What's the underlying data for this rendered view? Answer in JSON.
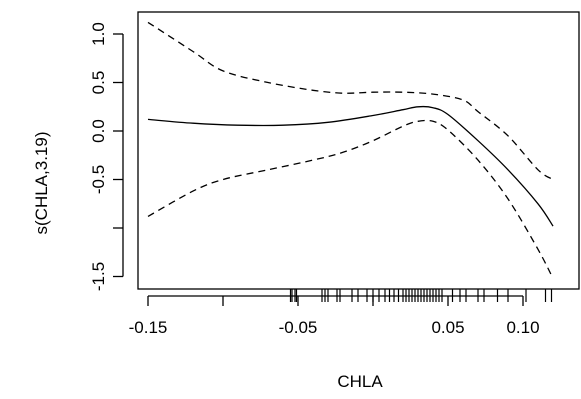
{
  "chart_data": {
    "type": "line",
    "title": "",
    "xlabel": "CHLA",
    "ylabel": "s(CHLA,3.19)",
    "xlim": [
      -0.15,
      0.12
    ],
    "ylim": [
      -1.65,
      1.2
    ],
    "x_ticks": [
      -0.15,
      -0.1,
      -0.05,
      0.0,
      0.05,
      0.1
    ],
    "x_tick_labels": [
      "-0.15",
      "",
      "-0.05",
      "",
      "0.05",
      "0.10"
    ],
    "y_ticks": [
      1.0,
      0.5,
      0.0,
      -0.5,
      -1.0,
      -1.5
    ],
    "y_tick_labels": [
      "1.0",
      "0.5",
      "0.0",
      "-0.5",
      "",
      "-1.5"
    ],
    "series": [
      {
        "style": "solid",
        "x": [
          -0.15,
          -0.12,
          -0.09,
          -0.06,
          -0.03,
          0.0,
          0.02,
          0.03,
          0.04,
          0.05,
          0.07,
          0.09,
          0.11,
          0.12
        ],
        "y": [
          0.12,
          0.08,
          0.06,
          0.06,
          0.09,
          0.16,
          0.22,
          0.25,
          0.24,
          0.17,
          -0.1,
          -0.4,
          -0.75,
          -0.98
        ]
      },
      {
        "style": "dashed",
        "x": [
          -0.15,
          -0.12,
          -0.1,
          -0.07,
          -0.04,
          -0.02,
          0.0,
          0.02,
          0.04,
          0.06,
          0.07,
          0.09,
          0.11,
          0.12
        ],
        "y": [
          1.12,
          0.82,
          0.62,
          0.5,
          0.42,
          0.39,
          0.4,
          0.4,
          0.38,
          0.32,
          0.2,
          -0.05,
          -0.4,
          -0.5
        ]
      },
      {
        "style": "dashed",
        "x": [
          -0.15,
          -0.12,
          -0.1,
          -0.07,
          -0.04,
          -0.02,
          0.0,
          0.02,
          0.03,
          0.04,
          0.05,
          0.07,
          0.09,
          0.11,
          0.12
        ],
        "y": [
          -0.88,
          -0.62,
          -0.5,
          -0.4,
          -0.3,
          -0.22,
          -0.1,
          0.05,
          0.1,
          0.1,
          0.01,
          -0.3,
          -0.7,
          -1.22,
          -1.52
        ]
      }
    ],
    "rug": [
      -0.055,
      -0.054,
      -0.052,
      -0.051,
      -0.034,
      -0.032,
      -0.03,
      -0.024,
      -0.022,
      -0.014,
      -0.01,
      -0.004,
      0.0,
      0.004,
      0.008,
      0.011,
      0.014,
      0.017,
      0.02,
      0.022,
      0.024,
      0.026,
      0.028,
      0.03,
      0.032,
      0.034,
      0.036,
      0.038,
      0.04,
      0.042,
      0.044,
      0.046,
      0.053,
      0.058,
      0.062,
      0.07,
      0.074,
      0.083,
      0.09,
      0.102,
      0.115,
      0.119
    ],
    "grid": false,
    "legend": "none",
    "box": true
  }
}
